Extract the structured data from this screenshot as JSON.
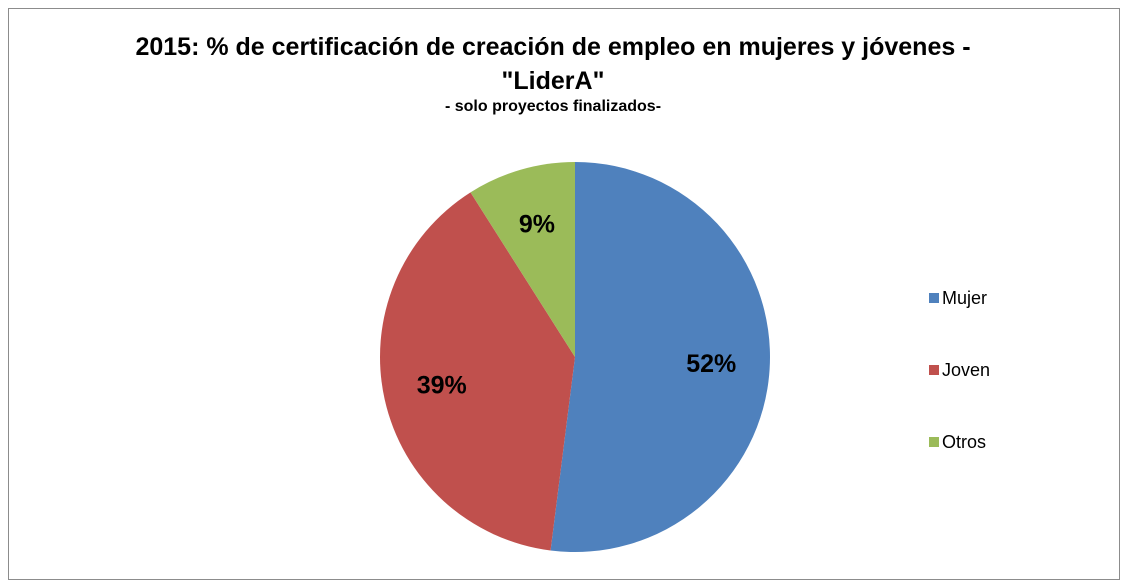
{
  "chart_data": {
    "type": "pie",
    "title": "2015: % de certificación de creación de empleo en mujeres y jóvenes - \"LiderA\"",
    "subtitle": "- solo proyectos finalizados-",
    "categories": [
      "Mujer",
      "Joven",
      "Otros"
    ],
    "values": [
      52,
      39,
      9
    ],
    "value_labels": [
      "52%",
      "39%",
      "9%"
    ],
    "colors": [
      "#4f81bd",
      "#c0504d",
      "#9bbb59"
    ],
    "legend": "right"
  }
}
